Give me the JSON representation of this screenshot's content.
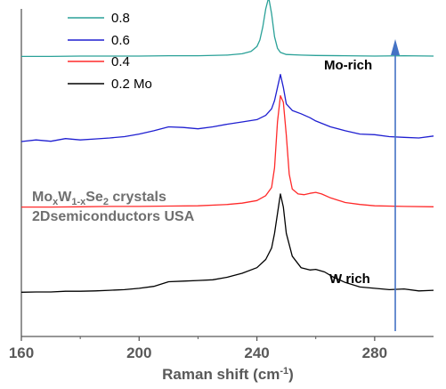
{
  "chart_data": {
    "type": "line",
    "title": "",
    "xlabel": "Raman shift (cm",
    "xlabel_sup": "-1",
    "xlabel_close": ")",
    "ylabel": "",
    "xlim": [
      160,
      300
    ],
    "x_ticks": [
      "160",
      "200",
      "240",
      "280"
    ],
    "y_ticks_shown": false,
    "legend": {
      "placement": "top-left",
      "entries": [
        "0.8",
        "0.6",
        "0.4",
        "0.2 Mo"
      ]
    },
    "annotations": {
      "mo_rich": "Mo-rich",
      "w_rich": "W rich",
      "crystal_prefix": "Mo",
      "crystal_sub1": "x",
      "crystal_mid": "W",
      "crystal_sub2": "1-x",
      "crystal_mid2": "Se",
      "crystal_sub3": "2",
      "crystal_suffix": " crystals",
      "company": "2Dsemiconductors USA"
    },
    "arrow": {
      "x": 287,
      "direction": "up",
      "color": "#4472c4"
    },
    "series": [
      {
        "name": "0.8",
        "color": "#2aa198",
        "baseline": 0.855,
        "x": [
          160,
          170,
          180,
          190,
          200,
          210,
          220,
          230,
          235,
          238,
          240,
          241,
          242,
          243,
          244,
          245,
          246,
          247,
          248,
          250,
          255,
          260,
          270,
          280,
          290,
          300
        ],
        "y": [
          0.0,
          0.0,
          0.001,
          0.001,
          0.001,
          0.002,
          0.002,
          0.004,
          0.008,
          0.015,
          0.03,
          0.05,
          0.09,
          0.145,
          0.18,
          0.13,
          0.06,
          0.025,
          0.012,
          0.006,
          0.004,
          0.003,
          0.002,
          0.001,
          0.002,
          0.001
        ]
      },
      {
        "name": "0.6",
        "color": "#1f1fd1",
        "baseline": 0.6,
        "x": [
          160,
          165,
          170,
          175,
          180,
          185,
          190,
          195,
          200,
          205,
          210,
          215,
          220,
          225,
          230,
          235,
          240,
          243,
          245,
          246,
          247,
          248,
          249,
          250,
          252,
          255,
          258,
          260,
          265,
          270,
          275,
          280,
          285,
          290,
          295,
          300
        ],
        "y": [
          -0.005,
          0.0,
          -0.004,
          0.004,
          0.0,
          0.003,
          0.006,
          0.01,
          0.018,
          0.028,
          0.04,
          0.038,
          0.034,
          0.04,
          0.048,
          0.055,
          0.062,
          0.075,
          0.095,
          0.12,
          0.16,
          0.2,
          0.16,
          0.11,
          0.09,
          0.08,
          0.068,
          0.058,
          0.04,
          0.028,
          0.018,
          0.016,
          0.01,
          0.008,
          0.006,
          0.012
        ]
      },
      {
        "name": "0.4",
        "color": "#ff2a2a",
        "baseline": 0.395,
        "x": [
          160,
          170,
          180,
          190,
          200,
          210,
          220,
          230,
          235,
          240,
          243,
          245,
          246,
          247,
          248,
          249,
          250,
          251,
          252,
          254,
          256,
          258,
          260,
          262,
          265,
          270,
          275,
          280,
          290,
          300
        ],
        "y": [
          0.0,
          0.0,
          0.001,
          0.002,
          0.002,
          0.003,
          0.004,
          0.008,
          0.012,
          0.02,
          0.035,
          0.06,
          0.12,
          0.26,
          0.34,
          0.32,
          0.22,
          0.1,
          0.055,
          0.04,
          0.038,
          0.042,
          0.045,
          0.04,
          0.028,
          0.014,
          0.008,
          0.004,
          0.002,
          0.001
        ]
      },
      {
        "name": "0.2 Mo",
        "color": "#000000",
        "baseline": 0.135,
        "x": [
          160,
          165,
          170,
          175,
          180,
          185,
          190,
          195,
          200,
          205,
          210,
          215,
          220,
          225,
          230,
          235,
          240,
          243,
          245,
          246,
          247,
          248,
          249,
          250,
          252,
          255,
          258,
          260,
          263,
          266,
          270,
          275,
          280,
          285,
          290,
          295,
          300
        ],
        "y": [
          0.0,
          0.001,
          0.001,
          0.003,
          0.003,
          0.004,
          0.006,
          0.008,
          0.012,
          0.018,
          0.032,
          0.034,
          0.036,
          0.038,
          0.046,
          0.058,
          0.075,
          0.1,
          0.135,
          0.18,
          0.24,
          0.3,
          0.26,
          0.18,
          0.11,
          0.075,
          0.068,
          0.07,
          0.062,
          0.046,
          0.03,
          0.016,
          0.012,
          0.008,
          0.01,
          0.004,
          0.006
        ]
      }
    ]
  }
}
